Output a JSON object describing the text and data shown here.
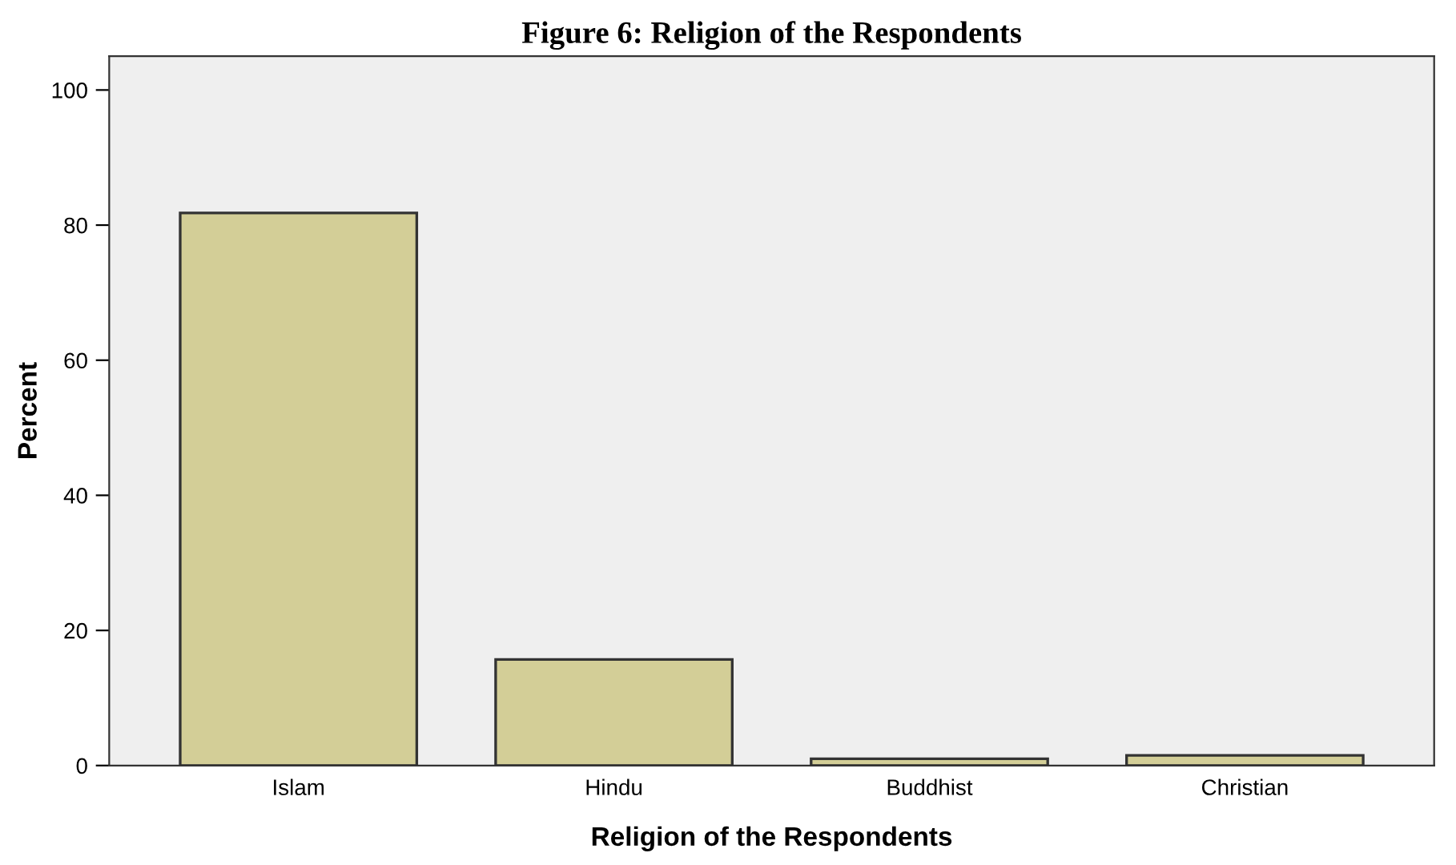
{
  "chart_data": {
    "type": "bar",
    "title": "Figure 6: Religion of the Respondents",
    "xlabel": "Religion of the Respondents",
    "ylabel": "Percent",
    "categories": [
      "Islam",
      "Hindu",
      "Buddhist",
      "Christian"
    ],
    "values": [
      81.8,
      15.7,
      1.0,
      1.5
    ],
    "color": "#d3ce97",
    "ylim": [
      0,
      105
    ],
    "yticks": [
      0,
      20,
      40,
      60,
      80,
      100
    ],
    "grid": false
  }
}
